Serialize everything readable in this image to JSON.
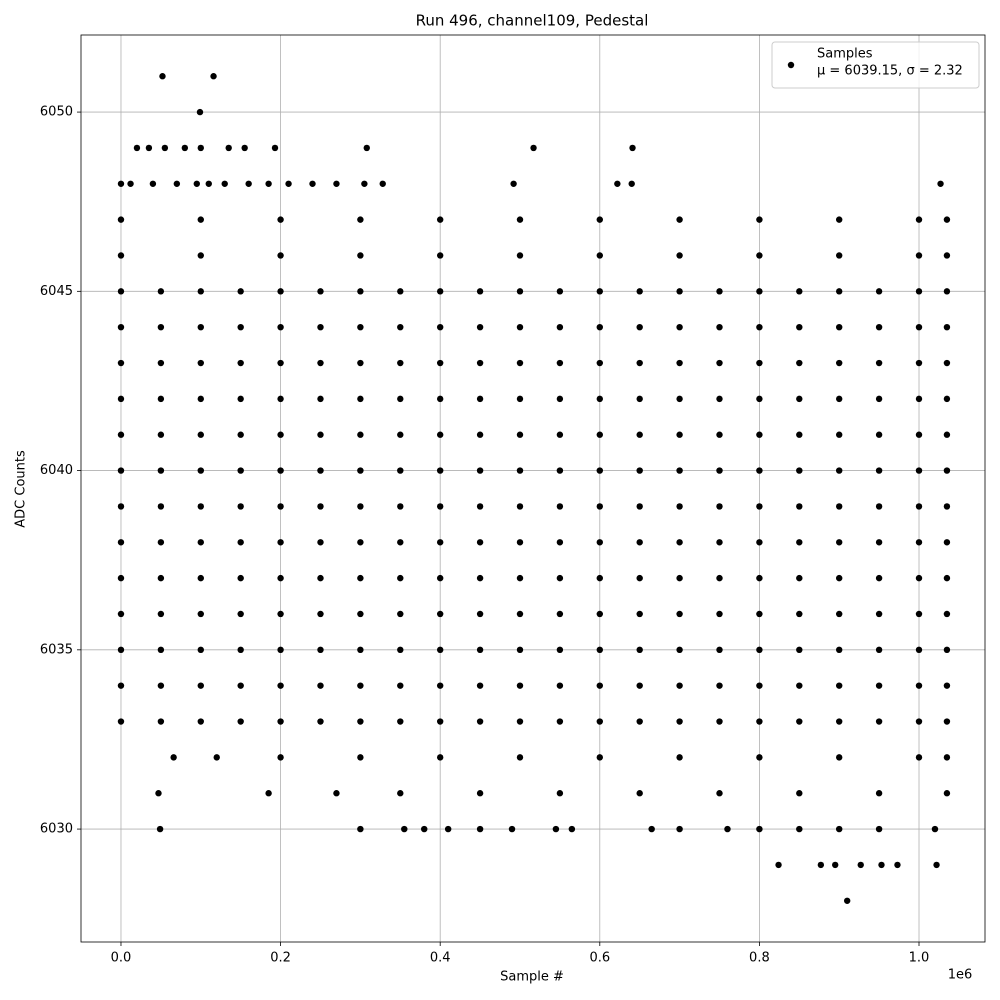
{
  "chart_data": {
    "type": "scatter",
    "title": "Run 496, channel109, Pedestal",
    "x_label": "Sample #",
    "y_label": "ADC Counts",
    "x_offset_label": "1e6",
    "xlim": [
      -50100,
      1082700
    ],
    "ylim": [
      6026.85,
      6052.15
    ],
    "xticks": [
      {
        "value": 0,
        "label": "0.0"
      },
      {
        "value": 200000,
        "label": "0.2"
      },
      {
        "value": 400000,
        "label": "0.4"
      },
      {
        "value": 600000,
        "label": "0.6"
      },
      {
        "value": 800000,
        "label": "0.8"
      },
      {
        "value": 1000000,
        "label": "1.0"
      }
    ],
    "yticks": [
      6030,
      6035,
      6040,
      6045,
      6050
    ],
    "grid": true,
    "legend_position": "upper right",
    "legend_note": "μ = 6039.15, σ = 2.32",
    "series": [
      {
        "name": "Samples",
        "color": "#000000",
        "x": [
          0,
          50000,
          100000,
          150000,
          200000,
          250000,
          300000,
          350000,
          400000,
          450000,
          500000,
          550000,
          600000,
          650000,
          700000,
          750000,
          800000,
          850000,
          900000,
          950000,
          1000000,
          1035000,
          0,
          50000,
          100000,
          150000,
          200000,
          250000,
          300000,
          350000,
          400000,
          450000,
          500000,
          550000,
          600000,
          650000,
          700000,
          750000,
          800000,
          850000,
          900000,
          950000,
          1000000,
          1035000,
          0,
          50000,
          100000,
          150000,
          200000,
          250000,
          300000,
          350000,
          400000,
          450000,
          500000,
          550000,
          600000,
          650000,
          700000,
          750000,
          800000,
          850000,
          900000,
          950000,
          1000000,
          1035000,
          0,
          50000,
          100000,
          150000,
          200000,
          250000,
          300000,
          350000,
          400000,
          450000,
          500000,
          550000,
          600000,
          650000,
          700000,
          750000,
          800000,
          850000,
          900000,
          950000,
          1000000,
          1035000,
          0,
          50000,
          100000,
          150000,
          200000,
          250000,
          300000,
          350000,
          400000,
          450000,
          500000,
          550000,
          600000,
          650000,
          700000,
          750000,
          800000,
          850000,
          900000,
          950000,
          1000000,
          1035000,
          0,
          50000,
          100000,
          150000,
          200000,
          250000,
          300000,
          350000,
          400000,
          450000,
          500000,
          550000,
          600000,
          650000,
          700000,
          750000,
          800000,
          850000,
          900000,
          950000,
          1000000,
          1035000,
          0,
          50000,
          100000,
          150000,
          200000,
          250000,
          300000,
          350000,
          400000,
          450000,
          500000,
          550000,
          600000,
          650000,
          700000,
          750000,
          800000,
          850000,
          900000,
          950000,
          1000000,
          1035000,
          0,
          50000,
          100000,
          150000,
          200000,
          250000,
          300000,
          350000,
          400000,
          450000,
          500000,
          550000,
          600000,
          650000,
          700000,
          750000,
          800000,
          850000,
          900000,
          950000,
          1000000,
          1035000,
          0,
          50000,
          100000,
          150000,
          200000,
          250000,
          300000,
          350000,
          400000,
          450000,
          500000,
          550000,
          600000,
          650000,
          700000,
          750000,
          800000,
          850000,
          900000,
          950000,
          1000000,
          1035000,
          0,
          50000,
          100000,
          150000,
          200000,
          250000,
          300000,
          350000,
          400000,
          450000,
          500000,
          550000,
          600000,
          650000,
          700000,
          750000,
          800000,
          850000,
          900000,
          950000,
          1000000,
          1035000,
          0,
          50000,
          100000,
          150000,
          200000,
          250000,
          300000,
          350000,
          400000,
          450000,
          500000,
          550000,
          600000,
          650000,
          700000,
          750000,
          800000,
          850000,
          900000,
          950000,
          1000000,
          1035000,
          0,
          50000,
          100000,
          150000,
          200000,
          250000,
          300000,
          350000,
          400000,
          450000,
          500000,
          550000,
          600000,
          650000,
          700000,
          750000,
          800000,
          850000,
          900000,
          950000,
          1000000,
          1035000,
          0,
          50000,
          100000,
          150000,
          200000,
          250000,
          300000,
          350000,
          400000,
          450000,
          500000,
          550000,
          600000,
          650000,
          700000,
          750000,
          800000,
          850000,
          900000,
          950000,
          1000000,
          1035000,
          0,
          100000,
          200000,
          300000,
          400000,
          500000,
          600000,
          700000,
          800000,
          900000,
          1000000,
          1035000,
          0,
          100000,
          200000,
          300000,
          400000,
          500000,
          600000,
          700000,
          800000,
          900000,
          1000000,
          1035000,
          66000,
          120000,
          200000,
          300000,
          400000,
          500000,
          600000,
          700000,
          800000,
          900000,
          1000000,
          1035000,
          47000,
          185000,
          270000,
          350000,
          450000,
          550000,
          650000,
          750000,
          850000,
          950000,
          1035000,
          52000,
          116000,
          99000,
          20000,
          35000,
          55000,
          80000,
          100000,
          135000,
          155000,
          193000,
          308000,
          517000,
          641000,
          0,
          12000,
          40000,
          70000,
          95000,
          110000,
          130000,
          160000,
          185000,
          210000,
          240000,
          270000,
          305000,
          328000,
          492000,
          622000,
          640000,
          1027000,
          49000,
          300000,
          355000,
          380000,
          410000,
          450000,
          490000,
          545000,
          565000,
          665000,
          700000,
          760000,
          800000,
          850000,
          900000,
          950000,
          1020000,
          824000,
          877000,
          895000,
          927000,
          953000,
          973000,
          1022000,
          910000
        ],
        "values": [
          6045,
          6045,
          6045,
          6045,
          6045,
          6045,
          6045,
          6045,
          6045,
          6045,
          6045,
          6045,
          6045,
          6045,
          6045,
          6045,
          6045,
          6045,
          6045,
          6045,
          6045,
          6045,
          6044,
          6044,
          6044,
          6044,
          6044,
          6044,
          6044,
          6044,
          6044,
          6044,
          6044,
          6044,
          6044,
          6044,
          6044,
          6044,
          6044,
          6044,
          6044,
          6044,
          6044,
          6044,
          6043,
          6043,
          6043,
          6043,
          6043,
          6043,
          6043,
          6043,
          6043,
          6043,
          6043,
          6043,
          6043,
          6043,
          6043,
          6043,
          6043,
          6043,
          6043,
          6043,
          6043,
          6043,
          6042,
          6042,
          6042,
          6042,
          6042,
          6042,
          6042,
          6042,
          6042,
          6042,
          6042,
          6042,
          6042,
          6042,
          6042,
          6042,
          6042,
          6042,
          6042,
          6042,
          6042,
          6042,
          6041,
          6041,
          6041,
          6041,
          6041,
          6041,
          6041,
          6041,
          6041,
          6041,
          6041,
          6041,
          6041,
          6041,
          6041,
          6041,
          6041,
          6041,
          6041,
          6041,
          6041,
          6041,
          6040,
          6040,
          6040,
          6040,
          6040,
          6040,
          6040,
          6040,
          6040,
          6040,
          6040,
          6040,
          6040,
          6040,
          6040,
          6040,
          6040,
          6040,
          6040,
          6040,
          6040,
          6040,
          6039,
          6039,
          6039,
          6039,
          6039,
          6039,
          6039,
          6039,
          6039,
          6039,
          6039,
          6039,
          6039,
          6039,
          6039,
          6039,
          6039,
          6039,
          6039,
          6039,
          6039,
          6039,
          6038,
          6038,
          6038,
          6038,
          6038,
          6038,
          6038,
          6038,
          6038,
          6038,
          6038,
          6038,
          6038,
          6038,
          6038,
          6038,
          6038,
          6038,
          6038,
          6038,
          6038,
          6038,
          6037,
          6037,
          6037,
          6037,
          6037,
          6037,
          6037,
          6037,
          6037,
          6037,
          6037,
          6037,
          6037,
          6037,
          6037,
          6037,
          6037,
          6037,
          6037,
          6037,
          6037,
          6037,
          6036,
          6036,
          6036,
          6036,
          6036,
          6036,
          6036,
          6036,
          6036,
          6036,
          6036,
          6036,
          6036,
          6036,
          6036,
          6036,
          6036,
          6036,
          6036,
          6036,
          6036,
          6036,
          6035,
          6035,
          6035,
          6035,
          6035,
          6035,
          6035,
          6035,
          6035,
          6035,
          6035,
          6035,
          6035,
          6035,
          6035,
          6035,
          6035,
          6035,
          6035,
          6035,
          6035,
          6035,
          6034,
          6034,
          6034,
          6034,
          6034,
          6034,
          6034,
          6034,
          6034,
          6034,
          6034,
          6034,
          6034,
          6034,
          6034,
          6034,
          6034,
          6034,
          6034,
          6034,
          6034,
          6034,
          6033,
          6033,
          6033,
          6033,
          6033,
          6033,
          6033,
          6033,
          6033,
          6033,
          6033,
          6033,
          6033,
          6033,
          6033,
          6033,
          6033,
          6033,
          6033,
          6033,
          6033,
          6033,
          6047,
          6047,
          6047,
          6047,
          6047,
          6047,
          6047,
          6047,
          6047,
          6047,
          6047,
          6047,
          6046,
          6046,
          6046,
          6046,
          6046,
          6046,
          6046,
          6046,
          6046,
          6046,
          6046,
          6046,
          6032,
          6032,
          6032,
          6032,
          6032,
          6032,
          6032,
          6032,
          6032,
          6032,
          6032,
          6032,
          6031,
          6031,
          6031,
          6031,
          6031,
          6031,
          6031,
          6031,
          6031,
          6031,
          6031,
          6051,
          6051,
          6050,
          6049,
          6049,
          6049,
          6049,
          6049,
          6049,
          6049,
          6049,
          6049,
          6049,
          6049,
          6048,
          6048,
          6048,
          6048,
          6048,
          6048,
          6048,
          6048,
          6048,
          6048,
          6048,
          6048,
          6048,
          6048,
          6048,
          6048,
          6048,
          6048,
          6030,
          6030,
          6030,
          6030,
          6030,
          6030,
          6030,
          6030,
          6030,
          6030,
          6030,
          6030,
          6030,
          6030,
          6030,
          6030,
          6030,
          6029,
          6029,
          6029,
          6029,
          6029,
          6029,
          6029,
          6028
        ]
      }
    ]
  }
}
